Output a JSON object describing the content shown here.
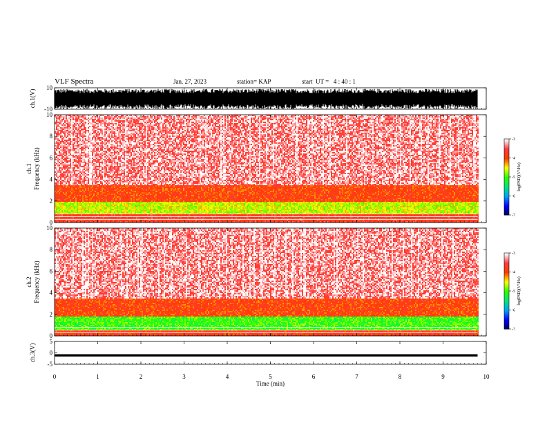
{
  "header": {
    "title": "VLF Spectra",
    "date": "Jan. 27, 2023",
    "station": "station= KAP",
    "start": "start  UT =   4 : 40 : 1"
  },
  "chart_data": [
    {
      "type": "line",
      "panel": "ch1-waveform",
      "ylabel": "ch.1(V)",
      "ylim": [
        -10,
        10
      ],
      "y_ticks": [
        "10",
        "-10"
      ],
      "xlim": [
        0,
        10
      ],
      "data_extent_min": 9.8,
      "description_level": "dense waveform filling roughly -8 to 8 V"
    },
    {
      "type": "heatmap",
      "panel": "ch1-spectrogram",
      "ylabel": "ch.1\nFrequency (kHz)",
      "ylim": [
        0,
        10
      ],
      "y_ticks": [
        "0",
        "2",
        "4",
        "6",
        "8",
        "10"
      ],
      "xlim": [
        0,
        10
      ],
      "data_extent_min": 9.8,
      "bands": [
        {
          "from_khz": 0.0,
          "to_khz": 0.8,
          "log_psd": -3.7
        },
        {
          "from_khz": 0.8,
          "to_khz": 2.0,
          "log_psd": -4.6
        },
        {
          "from_khz": 2.0,
          "to_khz": 3.5,
          "log_psd": -3.9
        },
        {
          "from_khz": 3.5,
          "to_khz": 10.0,
          "log_psd": -3.2
        }
      ],
      "colorbar": {
        "label": "log(PSD)(V²/Hz)",
        "ticks": [
          "-3",
          "-4",
          "-5",
          "-6",
          "-7"
        ],
        "range": [
          -7,
          -3
        ]
      }
    },
    {
      "type": "heatmap",
      "panel": "ch2-spectrogram",
      "ylabel": "ch.2\nFrequency (kHz)",
      "ylim": [
        0,
        10
      ],
      "y_ticks": [
        "0",
        "2",
        "4",
        "6",
        "8",
        "10"
      ],
      "xlim": [
        0,
        10
      ],
      "data_extent_min": 9.8,
      "bands": [
        {
          "from_khz": 0.0,
          "to_khz": 0.6,
          "log_psd": -3.8
        },
        {
          "from_khz": 0.6,
          "to_khz": 1.8,
          "log_psd": -5.0
        },
        {
          "from_khz": 1.8,
          "to_khz": 3.6,
          "log_psd": -3.9
        },
        {
          "from_khz": 3.6,
          "to_khz": 10.0,
          "log_psd": -3.2
        }
      ],
      "colorbar": {
        "label": "log(PSD)(V²/Hz)",
        "ticks": [
          "-3",
          "-4",
          "-5",
          "-6",
          "-7"
        ],
        "range": [
          -7,
          -3
        ]
      }
    },
    {
      "type": "line",
      "panel": "ch3-waveform",
      "ylabel": "ch.3(V)",
      "ylim": [
        -5,
        5
      ],
      "y_ticks": [
        "5",
        "0",
        "-5"
      ],
      "xlim": [
        0,
        10
      ],
      "data_extent_min": 9.8,
      "description_level": "thin band near -1 V"
    }
  ],
  "xaxis": {
    "label": "Time (min)",
    "ticks": [
      "0",
      "1",
      "2",
      "3",
      "4",
      "5",
      "6",
      "7",
      "8",
      "9",
      "10"
    ]
  },
  "colors": {
    "waveform": "#000000",
    "background": "#ffffff"
  }
}
